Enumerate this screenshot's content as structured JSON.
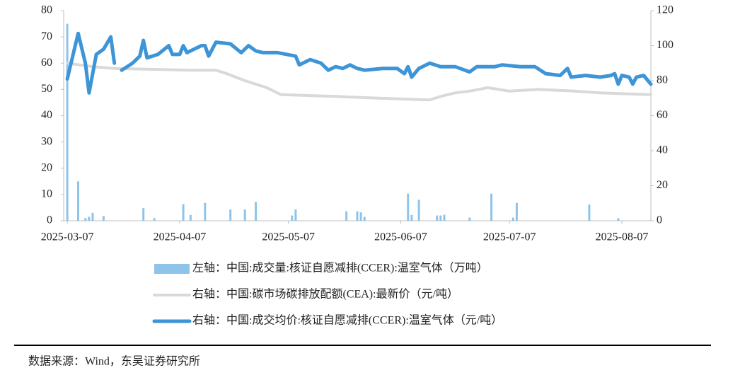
{
  "chart_data": {
    "type": "combo",
    "xlim": [
      "2025-03-06",
      "2025-08-15"
    ],
    "xticks": [
      "2025-03-07",
      "2025-04-07",
      "2025-05-07",
      "2025-06-07",
      "2025-07-07",
      "2025-08-07"
    ],
    "ylim": [
      0,
      80
    ],
    "yticks": [
      0,
      10,
      20,
      30,
      40,
      50,
      60,
      70,
      80
    ],
    "y2lim": [
      0,
      120
    ],
    "y2ticks": [
      0,
      20,
      40,
      60,
      80,
      100,
      120
    ],
    "series": [
      {
        "name": "左轴：中国:成交量:核证自愿减排(CCER):温室气体（万吨）",
        "type": "bar",
        "axis": "y",
        "color": "#8ec4ea",
        "x": [
          "2025-03-07",
          "2025-03-10",
          "2025-03-12",
          "2025-03-13",
          "2025-03-14",
          "2025-03-17",
          "2025-03-28",
          "2025-03-31",
          "2025-04-08",
          "2025-04-10",
          "2025-04-14",
          "2025-04-21",
          "2025-04-25",
          "2025-04-28",
          "2025-05-08",
          "2025-05-09",
          "2025-05-23",
          "2025-05-26",
          "2025-05-27",
          "2025-05-28",
          "2025-06-09",
          "2025-06-10",
          "2025-06-12",
          "2025-06-17",
          "2025-06-18",
          "2025-06-19",
          "2025-06-26",
          "2025-07-02",
          "2025-07-08",
          "2025-07-09",
          "2025-07-29",
          "2025-08-06"
        ],
        "values": [
          75,
          15,
          1,
          1.5,
          3,
          1.8,
          4.8,
          1,
          6.3,
          2.2,
          6.8,
          4.3,
          4.3,
          7.2,
          2,
          4.3,
          3.6,
          3.6,
          3.2,
          1.5,
          10.3,
          2.2,
          8,
          2,
          2,
          2.3,
          1.2,
          10.3,
          1.2,
          6.8,
          6.2,
          1
        ]
      },
      {
        "name": "右轴：中国:碳市场碳排放配额(CEA):最新价（元/吨）",
        "type": "line",
        "axis": "y2",
        "color": "#d9d9d9",
        "x": [
          "2025-03-07",
          "2025-03-14",
          "2025-03-20",
          "2025-04-10",
          "2025-04-17",
          "2025-04-20",
          "2025-04-25",
          "2025-05-01",
          "2025-05-05",
          "2025-05-20",
          "2025-06-01",
          "2025-06-15",
          "2025-06-18",
          "2025-06-22",
          "2025-06-26",
          "2025-07-01",
          "2025-07-07",
          "2025-07-15",
          "2025-07-25",
          "2025-08-01",
          "2025-08-15"
        ],
        "values": [
          90,
          88,
          87,
          86,
          86,
          84,
          80,
          76,
          72,
          71,
          70,
          69,
          71,
          73,
          74,
          76,
          74,
          75,
          74,
          73,
          72
        ]
      },
      {
        "name": "右轴：中国:成交均价:核证自愿减排(CCER):温室气体（元/吨）",
        "type": "line",
        "axis": "y2",
        "color": "#3d94d6",
        "x": [
          "2025-03-07",
          "2025-03-10",
          "2025-03-12",
          "2025-03-13",
          "2025-03-15",
          "2025-03-17",
          "2025-03-19",
          "2025-03-20",
          "2025-03-21",
          "2025-03-22",
          "2025-03-25",
          "2025-03-27",
          "2025-03-28",
          "2025-03-29",
          "2025-04-01",
          "2025-04-04",
          "2025-04-05",
          "2025-04-07",
          "2025-04-08",
          "2025-04-09",
          "2025-04-13",
          "2025-04-14",
          "2025-04-15",
          "2025-04-17",
          "2025-04-21",
          "2025-04-24",
          "2025-04-26",
          "2025-04-28",
          "2025-04-30",
          "2025-05-04",
          "2025-05-09",
          "2025-05-10",
          "2025-05-13",
          "2025-05-16",
          "2025-05-18",
          "2025-05-20",
          "2025-05-22",
          "2025-05-24",
          "2025-05-26",
          "2025-05-28",
          "2025-06-02",
          "2025-06-06",
          "2025-06-08",
          "2025-06-09",
          "2025-06-10",
          "2025-06-12",
          "2025-06-15",
          "2025-06-18",
          "2025-06-22",
          "2025-06-26",
          "2025-06-28",
          "2025-07-03",
          "2025-07-05",
          "2025-07-10",
          "2025-07-14",
          "2025-07-17",
          "2025-07-21",
          "2025-07-23",
          "2025-07-24",
          "2025-07-28",
          "2025-08-01",
          "2025-08-04",
          "2025-08-05",
          "2025-08-06",
          "2025-08-07",
          "2025-08-09",
          "2025-08-10",
          "2025-08-11",
          "2025-08-13",
          "2025-08-15"
        ],
        "values": [
          81,
          107,
          90,
          73,
          95,
          98,
          105,
          90,
          null,
          86,
          90,
          94,
          103,
          93,
          95,
          100,
          95,
          95,
          100,
          96,
          100,
          100,
          94,
          102,
          101,
          96,
          100,
          97,
          96,
          96,
          94,
          89,
          92,
          90,
          86,
          88,
          87,
          89,
          87,
          86,
          87,
          87,
          84,
          88,
          82,
          87,
          90,
          88,
          88,
          85,
          88,
          88,
          89,
          88,
          88,
          84,
          83,
          87,
          82,
          83,
          82,
          83,
          84,
          78,
          83,
          82,
          78,
          82,
          83,
          78
        ]
      }
    ],
    "source": "数据来源：Wind，东吴证券研究所"
  }
}
